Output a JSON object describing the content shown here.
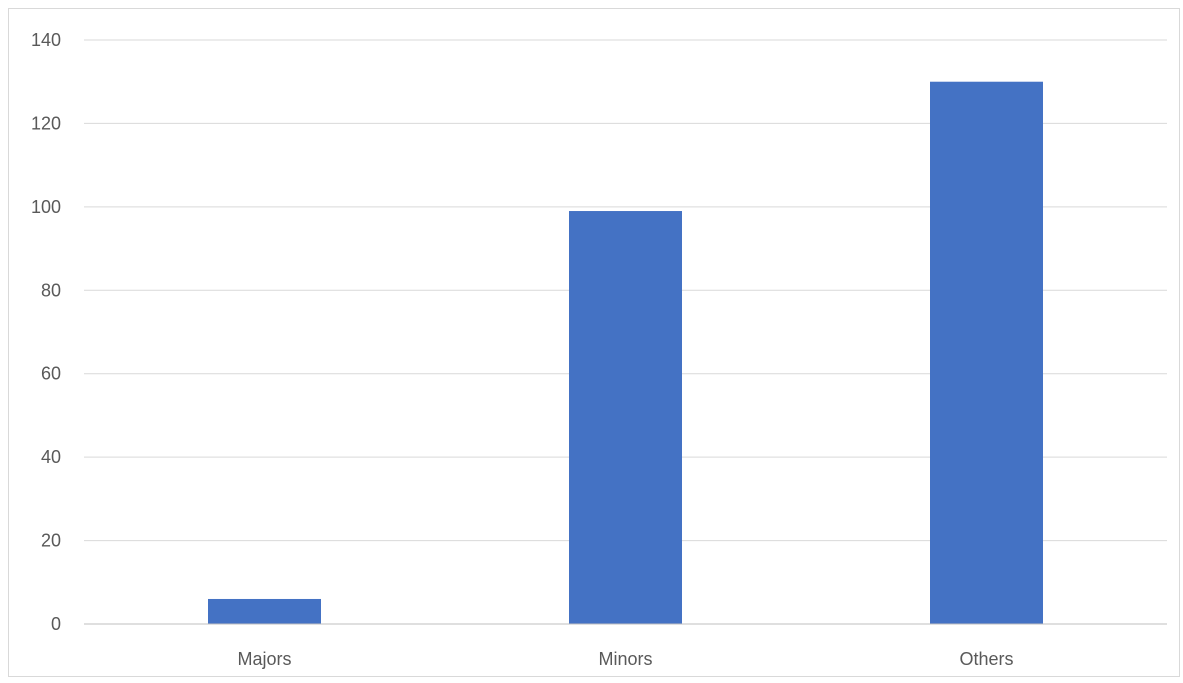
{
  "chart_data": {
    "type": "bar",
    "title": "",
    "xlabel": "",
    "ylabel": "",
    "categories": [
      "Majors",
      "Minors",
      "Others"
    ],
    "values": [
      6,
      99,
      130
    ],
    "ylim": [
      0,
      140
    ],
    "ytick_step": 20,
    "grid": true,
    "legend": "none",
    "colors": {
      "bar": "#4472C4",
      "grid": "#d9d9d9",
      "axis": "#bfbfbf",
      "text": "#595959"
    }
  }
}
